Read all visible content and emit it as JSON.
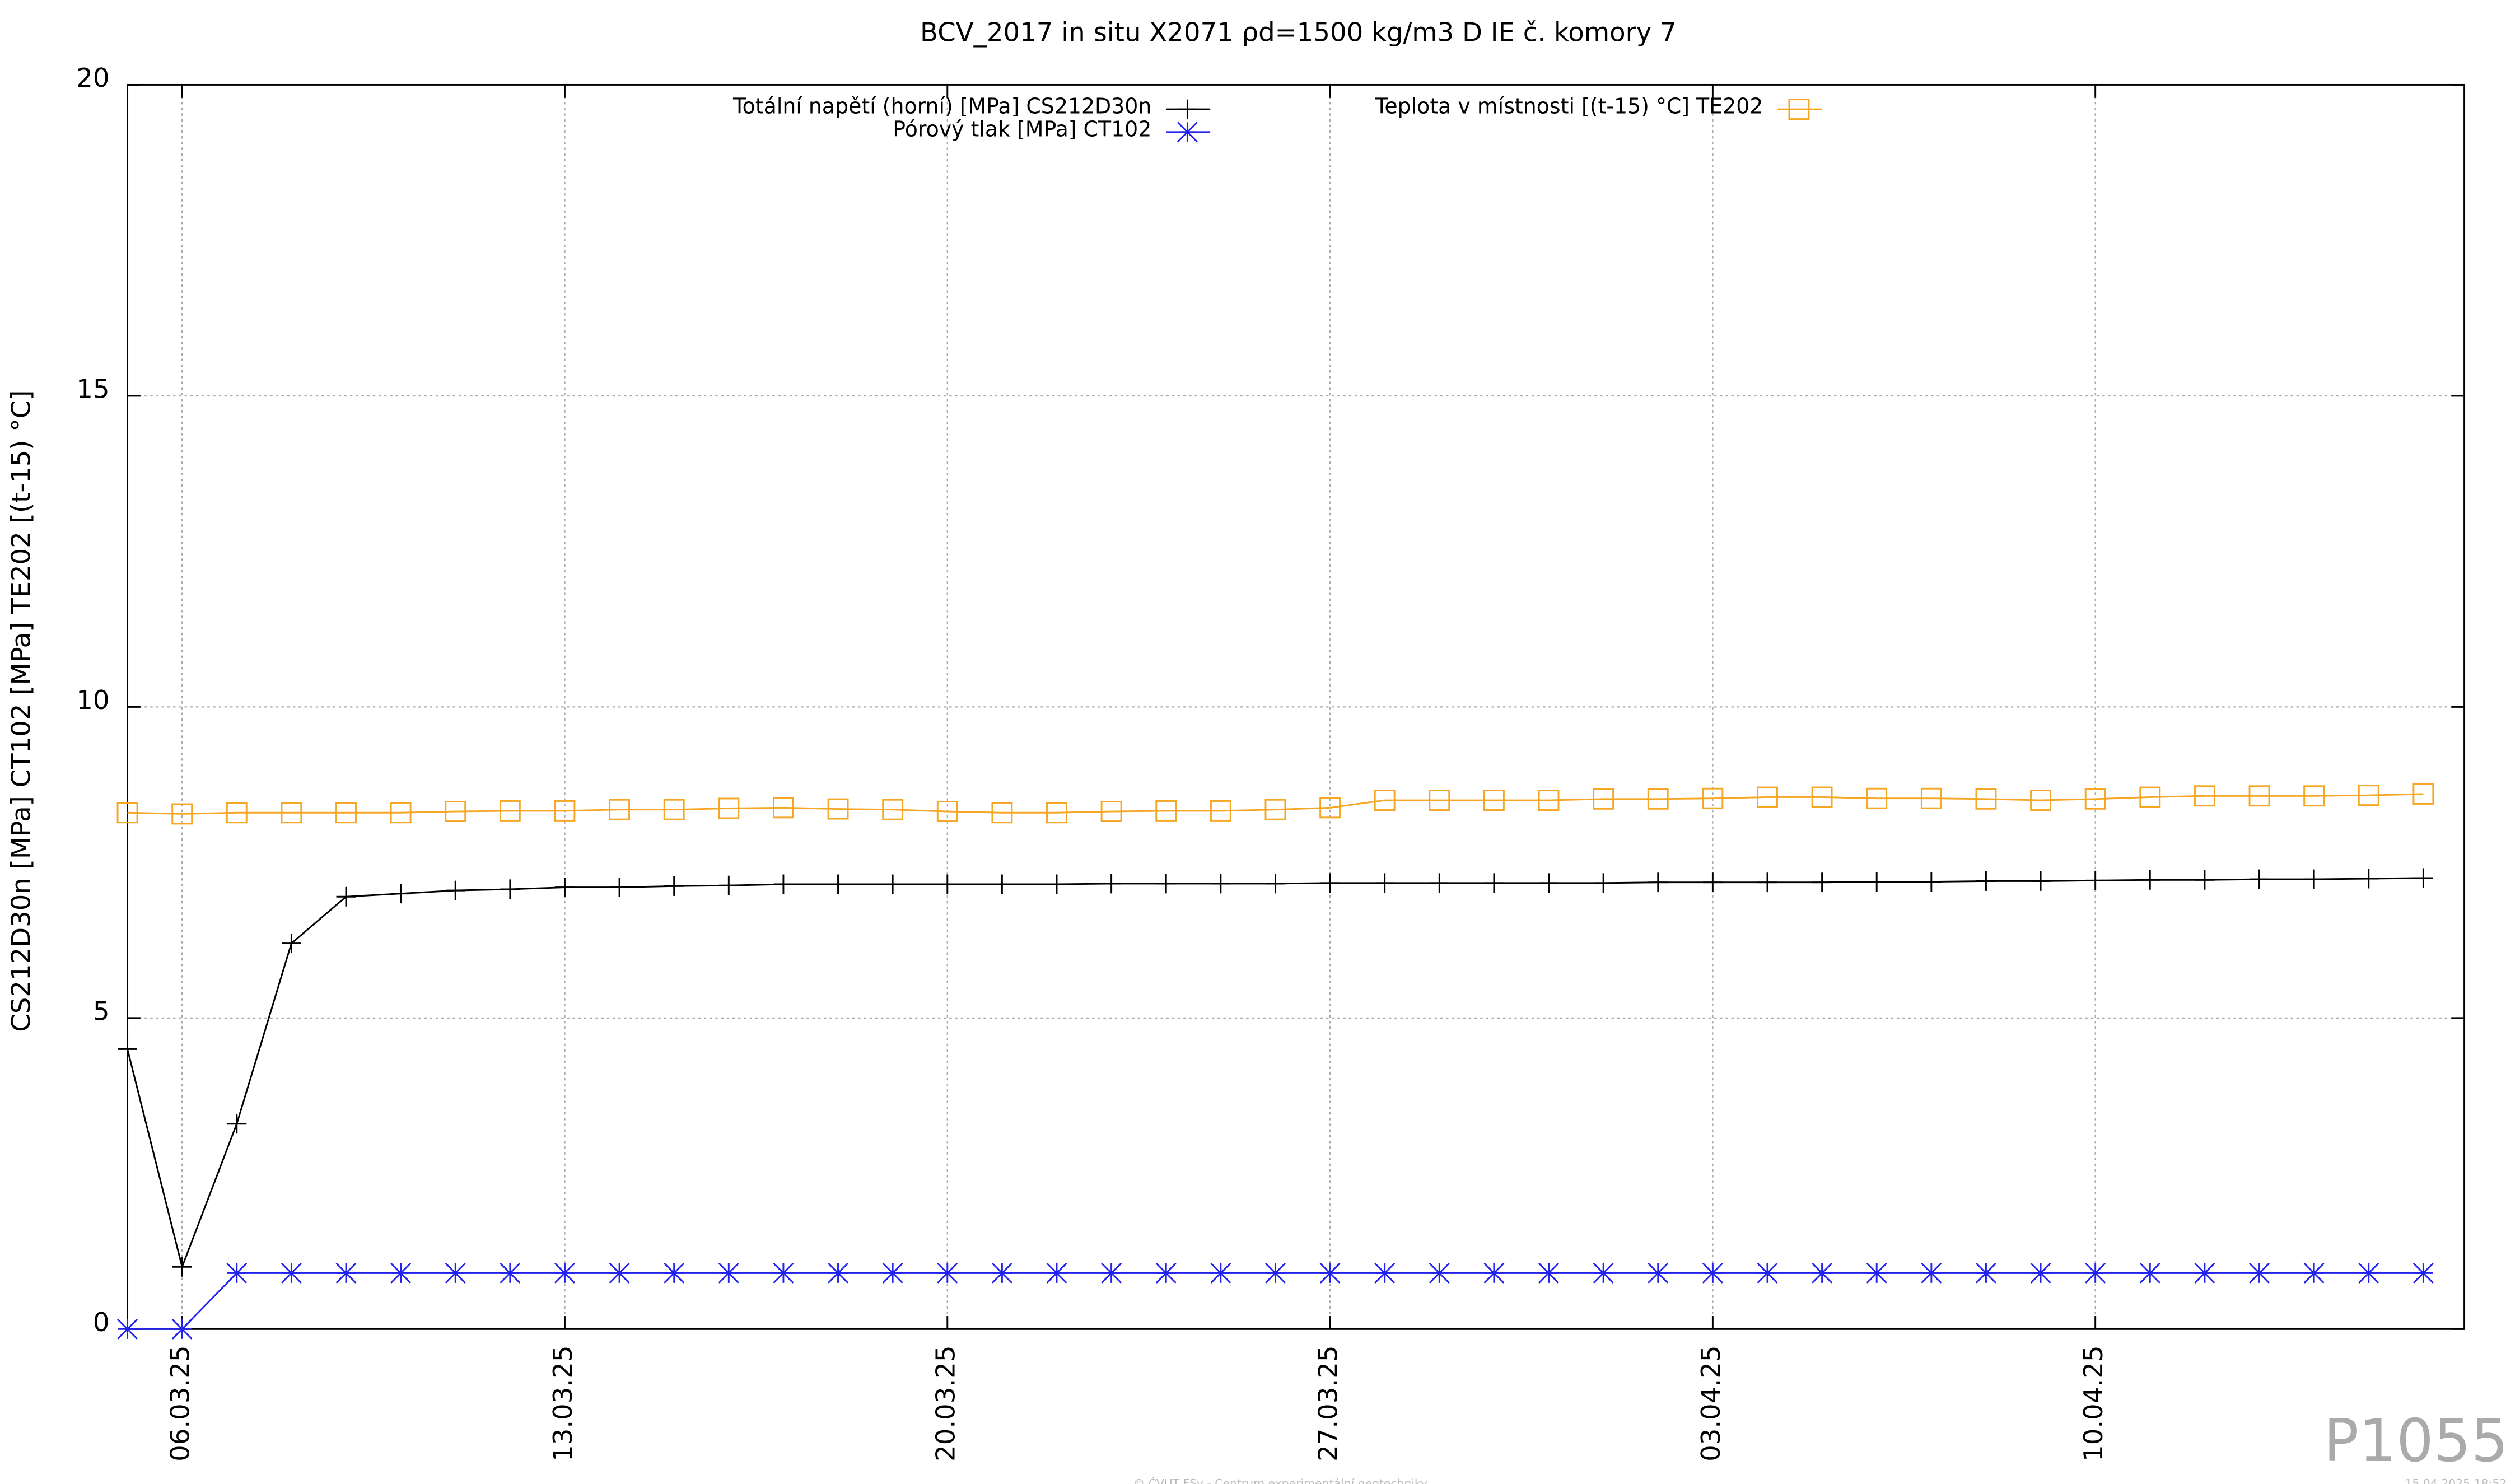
{
  "chart_data": {
    "type": "line",
    "title": "BCV_2017 in situ X2071 ρd=1500 kg/m3 D IE č. komory 7",
    "ylabel": "CS212D30n [MPa] CT102 [MPa] TE202 [(t-15) °C]",
    "x": [
      "2025-03-05",
      "2025-03-06",
      "2025-03-07",
      "2025-03-08",
      "2025-03-09",
      "2025-03-10",
      "2025-03-11",
      "2025-03-12",
      "2025-03-13",
      "2025-03-14",
      "2025-03-15",
      "2025-03-16",
      "2025-03-17",
      "2025-03-18",
      "2025-03-19",
      "2025-03-20",
      "2025-03-21",
      "2025-03-22",
      "2025-03-23",
      "2025-03-24",
      "2025-03-25",
      "2025-03-26",
      "2025-03-27",
      "2025-03-28",
      "2025-03-29",
      "2025-03-30",
      "2025-03-31",
      "2025-04-01",
      "2025-04-02",
      "2025-04-03",
      "2025-04-04",
      "2025-04-05",
      "2025-04-06",
      "2025-04-07",
      "2025-04-08",
      "2025-04-09",
      "2025-04-10",
      "2025-04-11",
      "2025-04-12",
      "2025-04-13",
      "2025-04-14",
      "2025-04-15",
      "2025-04-16"
    ],
    "series": [
      {
        "name": "Totální napětí (horní) [MPa] CS212D30n",
        "color": "#000000",
        "marker": "plus",
        "values": [
          4.5,
          1.0,
          3.3,
          6.2,
          6.95,
          7.0,
          7.05,
          7.07,
          7.1,
          7.1,
          7.12,
          7.13,
          7.15,
          7.15,
          7.15,
          7.15,
          7.15,
          7.15,
          7.16,
          7.16,
          7.16,
          7.16,
          7.17,
          7.17,
          7.17,
          7.17,
          7.17,
          7.17,
          7.18,
          7.18,
          7.18,
          7.18,
          7.19,
          7.19,
          7.2,
          7.2,
          7.21,
          7.22,
          7.22,
          7.23,
          7.23,
          7.24,
          7.25
        ]
      },
      {
        "name": "Pórový tlak [MPa] CT102",
        "color": "#2222ee",
        "marker": "star",
        "values": [
          0,
          0,
          0.9,
          0.9,
          0.9,
          0.9,
          0.9,
          0.9,
          0.9,
          0.9,
          0.9,
          0.9,
          0.9,
          0.9,
          0.9,
          0.9,
          0.9,
          0.9,
          0.9,
          0.9,
          0.9,
          0.9,
          0.9,
          0.9,
          0.9,
          0.9,
          0.9,
          0.9,
          0.9,
          0.9,
          0.9,
          0.9,
          0.9,
          0.9,
          0.9,
          0.9,
          0.9,
          0.9,
          0.9,
          0.9,
          0.9,
          0.9,
          0.9
        ]
      },
      {
        "name": "Teplota v místnosti [(t-15) °C] TE202",
        "color": "#f5a623",
        "marker": "square",
        "values": [
          8.3,
          8.28,
          8.3,
          8.3,
          8.3,
          8.3,
          8.32,
          8.33,
          8.33,
          8.35,
          8.35,
          8.37,
          8.38,
          8.36,
          8.35,
          8.32,
          8.3,
          8.3,
          8.32,
          8.33,
          8.33,
          8.35,
          8.38,
          8.5,
          8.5,
          8.5,
          8.5,
          8.52,
          8.52,
          8.53,
          8.55,
          8.55,
          8.53,
          8.53,
          8.52,
          8.5,
          8.52,
          8.55,
          8.57,
          8.57,
          8.57,
          8.58,
          8.6
        ]
      }
    ],
    "xlim": [
      "2025-03-05",
      "2025-04-16T18:00"
    ],
    "xticks": [
      {
        "value": "2025-03-06",
        "label": "06.03.25"
      },
      {
        "value": "2025-03-13",
        "label": "13.03.25"
      },
      {
        "value": "2025-03-20",
        "label": "20.03.25"
      },
      {
        "value": "2025-03-27",
        "label": "27.03.25"
      },
      {
        "value": "2025-04-03",
        "label": "03.04.25"
      },
      {
        "value": "2025-04-10",
        "label": "10.04.25"
      }
    ],
    "ylim": [
      0,
      20
    ],
    "yticks": [
      0,
      5,
      10,
      15,
      20
    ],
    "grid": true
  },
  "watermark": "P1055",
  "footer": "© ČVUT FSv - Centrum experimentální geotechniky",
  "timestamp": "15.04.2025 18:52"
}
